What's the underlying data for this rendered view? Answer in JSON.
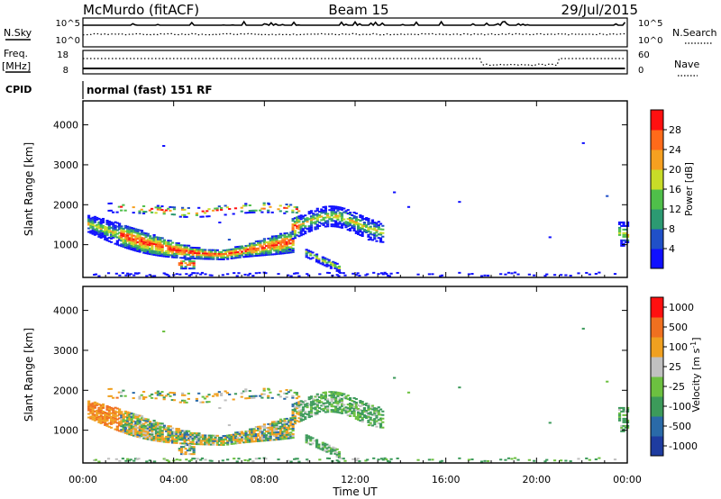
{
  "header": {
    "station": "McMurdo (fitACF)",
    "beam": "Beam 15",
    "date": "29/Jul/2015"
  },
  "status_panel": {
    "nsky_label": "N.Sky",
    "nsearch_label": "N.Search",
    "nsky_ticks": [
      "10^5",
      "10^0"
    ],
    "nsearch_ticks": [
      "10^5",
      "10^0"
    ],
    "freq_label": "Freq.",
    "freq_unit": "[MHz]",
    "freq_ticks": [
      "18",
      "8"
    ],
    "nave_label": "Nave",
    "nave_ticks": [
      "60",
      "0"
    ],
    "cpid_label": "CPID",
    "cpid_value": "normal (fast) 151 RF"
  },
  "x_axis": {
    "label": "Time UT",
    "ticks": [
      "00:00",
      "04:00",
      "08:00",
      "12:00",
      "16:00",
      "20:00",
      "00:00"
    ]
  },
  "chart_data": [
    {
      "type": "heatmap",
      "name": "power",
      "xlabel": "Time UT",
      "ylabel": "Slant Range [km]",
      "xlim_hours": [
        0,
        24
      ],
      "ylim_km": [
        180,
        4600
      ],
      "yticks": [
        1000,
        2000,
        3000,
        4000
      ],
      "colorbar": {
        "label": "Power [dB]",
        "ticks": [
          4,
          8,
          12,
          16,
          20,
          24,
          28
        ],
        "range": [
          0,
          30
        ],
        "colors": [
          "#1010ff",
          "#2050c8",
          "#2c9a72",
          "#4fbf4a",
          "#c8dc28",
          "#f6a020",
          "#ff6a1a",
          "#ff1010"
        ]
      }
    },
    {
      "type": "heatmap",
      "name": "velocity",
      "xlabel": "Time UT",
      "ylabel": "Slant Range [km]",
      "xlim_hours": [
        0,
        24
      ],
      "ylim_km": [
        180,
        4600
      ],
      "yticks": [
        1000,
        2000,
        3000,
        4000
      ],
      "colorbar": {
        "label": "Velocity [m s^-1]",
        "ticks": [
          "1000",
          "500",
          "100",
          "25",
          "-25",
          "-100",
          "-500",
          "-1000"
        ],
        "colors": [
          "#1e3ca0",
          "#2a6aa8",
          "#3c9a5a",
          "#6cc040",
          "#c0c0c0",
          "#f0a020",
          "#f07020",
          "#ff1010"
        ]
      }
    }
  ]
}
